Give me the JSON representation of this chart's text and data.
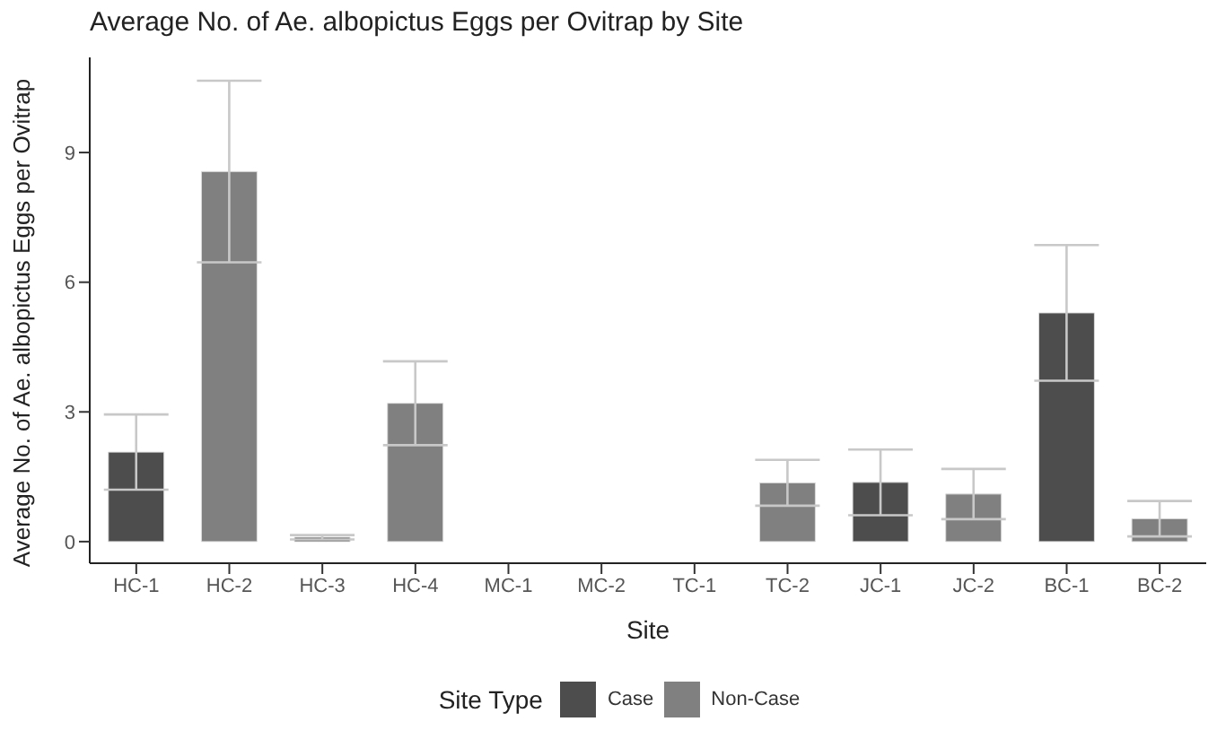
{
  "chart_data": {
    "type": "bar",
    "title": "Average No. of Ae. albopictus Eggs per Ovitrap by Site",
    "xlabel": "Site",
    "ylabel": "Average No. of Ae. albopictus Eggs per Ovitrap",
    "legend_title": "Site Type",
    "legend": "bottom",
    "grid": false,
    "categories": [
      "HC-1",
      "HC-2",
      "HC-3",
      "HC-4",
      "MC-1",
      "MC-2",
      "TC-1",
      "TC-2",
      "JC-1",
      "JC-2",
      "BC-1",
      "BC-2"
    ],
    "ylim": [
      -0.5,
      11.2
    ],
    "yticks": [
      0,
      3,
      6,
      9
    ],
    "series": [
      {
        "name": "Case",
        "color": "#4d4d4d",
        "values": [
          2.07,
          null,
          0.1,
          null,
          0,
          null,
          0,
          null,
          1.37,
          null,
          5.29,
          null
        ],
        "errors": [
          0.87,
          null,
          0.05,
          null,
          0,
          null,
          0,
          null,
          0.76,
          null,
          1.57,
          null
        ]
      },
      {
        "name": "Non-Case",
        "color": "#808080",
        "values": [
          null,
          8.56,
          null,
          3.2,
          null,
          0,
          null,
          1.36,
          null,
          1.1,
          null,
          0.53
        ],
        "errors": [
          null,
          2.1,
          null,
          0.97,
          null,
          0,
          null,
          0.53,
          null,
          0.58,
          null,
          0.41
        ]
      }
    ]
  }
}
